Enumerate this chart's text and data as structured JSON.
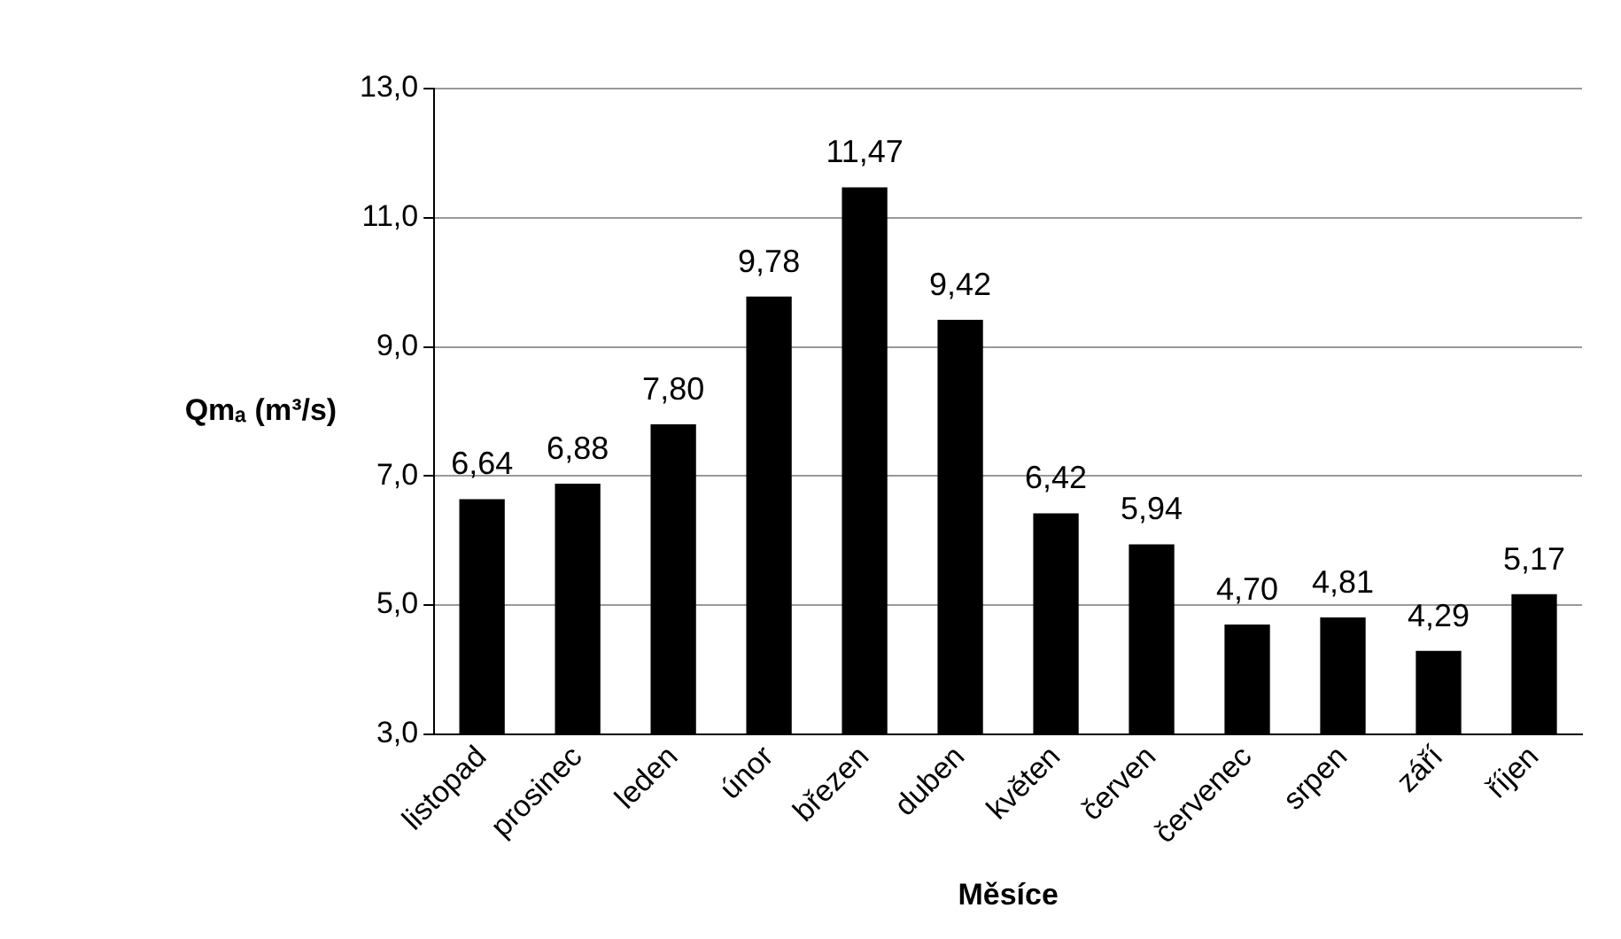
{
  "chart_data": {
    "type": "bar",
    "xlabel": "Měsíce",
    "ylabel": "Qmₐ (m³/s)",
    "categories": [
      "listopad",
      "prosinec",
      "leden",
      "únor",
      "březen",
      "duben",
      "květen",
      "červen",
      "červenec",
      "srpen",
      "září",
      "říjen"
    ],
    "values": [
      6.64,
      6.88,
      7.8,
      9.78,
      11.47,
      9.42,
      6.42,
      5.94,
      4.7,
      4.81,
      4.29,
      5.17
    ],
    "value_labels": [
      "6,64",
      "6,88",
      "7,80",
      "9,78",
      "11,47",
      "9,42",
      "6,42",
      "5,94",
      "4,70",
      "4,81",
      "4,29",
      "5,17"
    ],
    "color": "#000000",
    "ylim": [
      3,
      13
    ],
    "yticks": [
      {
        "value": 3,
        "label": "3,0"
      },
      {
        "value": 5,
        "label": "5,0"
      },
      {
        "value": 7,
        "label": "7,0"
      },
      {
        "value": 9,
        "label": "9,0"
      },
      {
        "value": 11,
        "label": "11,0"
      },
      {
        "value": 13,
        "label": "13,0"
      }
    ],
    "grid": "y",
    "legend": false
  }
}
